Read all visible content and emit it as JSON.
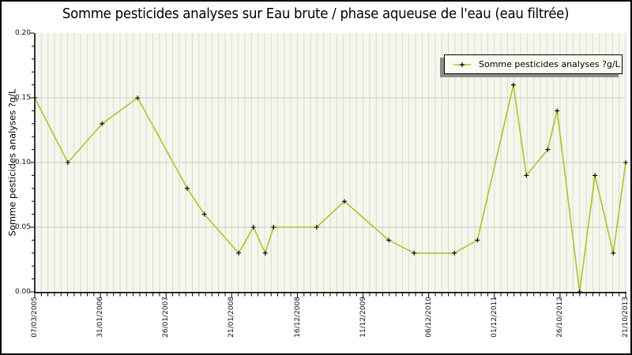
{
  "colors": {
    "line": "#a2c82c",
    "marker": "#000000",
    "plot_bg": "#f7f6ec",
    "grid_vertical": "#dbdacf",
    "grid_horizontal": "#c9c9c9",
    "axis": "#000000",
    "legend_bg": "#fbfaf2",
    "legend_shadow": "#8c8c8c"
  },
  "chart_data": {
    "type": "line",
    "title": "Somme pesticides analyses sur Eau brute / phase aqueuse de l'eau (eau filtrée)",
    "ylabel": "Somme pesticides analyses ?g/L",
    "legend_label": "Somme pesticides analyses ?g/L",
    "legend_position": "top-right",
    "grid": true,
    "ylim": [
      0,
      0.2
    ],
    "y_major_step": 0.05,
    "y_minor_step": 0.01,
    "y_ticks": [
      "0.00",
      "0.05",
      "0.10",
      "0.15",
      "0.20"
    ],
    "x_tick_labels": [
      "07/03/2005",
      "31/01/2006",
      "26/01/2007",
      "21/01/2008",
      "16/12/2008",
      "11/12/2009",
      "06/12/2010",
      "01/12/2011",
      "26/10/2012",
      "21/10/2013"
    ],
    "x_minor_divisions_per_major": 10,
    "points": [
      {
        "x_frac": 0.0,
        "value": 0.15
      },
      {
        "x_frac": 0.056,
        "value": 0.1
      },
      {
        "x_frac": 0.114,
        "value": 0.13
      },
      {
        "x_frac": 0.174,
        "value": 0.15
      },
      {
        "x_frac": 0.258,
        "value": 0.08
      },
      {
        "x_frac": 0.287,
        "value": 0.06
      },
      {
        "x_frac": 0.345,
        "value": 0.03
      },
      {
        "x_frac": 0.37,
        "value": 0.05
      },
      {
        "x_frac": 0.39,
        "value": 0.03
      },
      {
        "x_frac": 0.404,
        "value": 0.05
      },
      {
        "x_frac": 0.477,
        "value": 0.05
      },
      {
        "x_frac": 0.524,
        "value": 0.07
      },
      {
        "x_frac": 0.599,
        "value": 0.04
      },
      {
        "x_frac": 0.642,
        "value": 0.03
      },
      {
        "x_frac": 0.71,
        "value": 0.03
      },
      {
        "x_frac": 0.749,
        "value": 0.04
      },
      {
        "x_frac": 0.81,
        "value": 0.16
      },
      {
        "x_frac": 0.832,
        "value": 0.09
      },
      {
        "x_frac": 0.868,
        "value": 0.11
      },
      {
        "x_frac": 0.884,
        "value": 0.14
      },
      {
        "x_frac": 0.922,
        "value": 0.0
      },
      {
        "x_frac": 0.948,
        "value": 0.09
      },
      {
        "x_frac": 0.979,
        "value": 0.03
      },
      {
        "x_frac": 1.0,
        "value": 0.1
      }
    ]
  }
}
